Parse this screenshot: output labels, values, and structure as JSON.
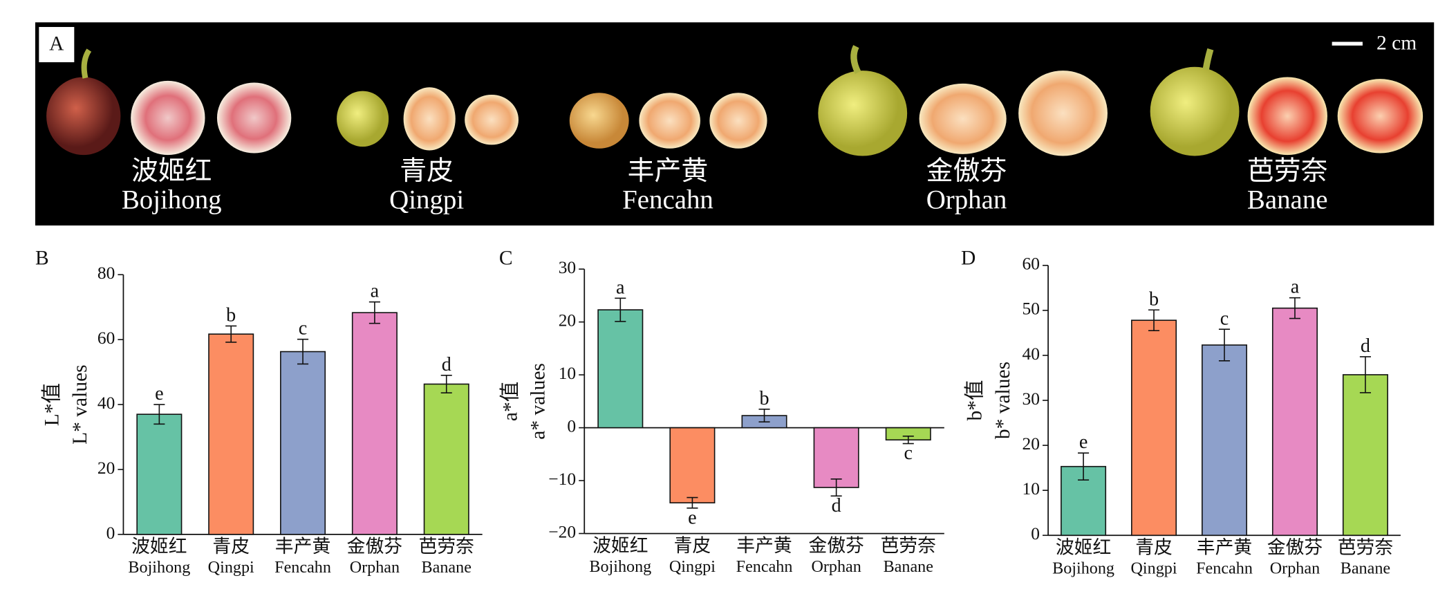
{
  "photo_panel": {
    "label": "A",
    "scale_bar": "2 cm",
    "varieties": [
      {
        "zh": "波姬红",
        "en": "Bojihong"
      },
      {
        "zh": "青皮",
        "en": "Qingpi"
      },
      {
        "zh": "丰产黄",
        "en": "Fencahn"
      },
      {
        "zh": "金傲芬",
        "en": "Orphan"
      },
      {
        "zh": "芭劳奈",
        "en": "Banane"
      }
    ]
  },
  "chart_data": [
    {
      "type": "bar",
      "panel_label": "B",
      "ylabel_zh": "L*值",
      "ylabel": "L* values",
      "categories": [
        "波姬红",
        "青皮",
        "丰产黄",
        "金傲芬",
        "芭劳奈"
      ],
      "category_subtitles": [
        "Bojihong",
        "Qingpi",
        "Fencahn",
        "Orphan",
        "Banane"
      ],
      "values": [
        37,
        61.7,
        56.3,
        68.3,
        46.3
      ],
      "errors": [
        3,
        2.5,
        3.8,
        3.3,
        2.7
      ],
      "significance": [
        "e",
        "b",
        "c",
        "a",
        "d"
      ],
      "colors": [
        "#66c2a5",
        "#fc8d62",
        "#8da0cb",
        "#e78ac3",
        "#a6d854"
      ],
      "ylim": [
        0,
        80
      ],
      "yticks": [
        0,
        20,
        40,
        60,
        80
      ]
    },
    {
      "type": "bar",
      "panel_label": "C",
      "ylabel_zh": "a*值",
      "ylabel": "a* values",
      "categories": [
        "波姬红",
        "青皮",
        "丰产黄",
        "金傲芬",
        "芭劳奈"
      ],
      "category_subtitles": [
        "Bojihong",
        "Qingpi",
        "Fencahn",
        "Orphan",
        "Banane"
      ],
      "values": [
        22.3,
        -14.2,
        2.3,
        -11.3,
        -2.3
      ],
      "errors": [
        2.2,
        1.0,
        1.2,
        1.6,
        0.7
      ],
      "significance": [
        "a",
        "e",
        "b",
        "d",
        "c"
      ],
      "colors": [
        "#66c2a5",
        "#fc8d62",
        "#8da0cb",
        "#e78ac3",
        "#a6d854"
      ],
      "ylim": [
        -20,
        30
      ],
      "yticks": [
        {
          "value": -20,
          "label": "−20"
        },
        {
          "value": -10,
          "label": "−10"
        },
        0,
        10,
        20,
        30
      ]
    },
    {
      "type": "bar",
      "panel_label": "D",
      "ylabel_zh": "b*值",
      "ylabel": "b* values",
      "categories": [
        "波姬红",
        "青皮",
        "丰产黄",
        "金傲芬",
        "芭劳奈"
      ],
      "category_subtitles": [
        "Bojihong",
        "Qingpi",
        "Fencahn",
        "Orphan",
        "Banane"
      ],
      "values": [
        15.3,
        47.8,
        42.3,
        50.5,
        35.7
      ],
      "errors": [
        3,
        2.3,
        3.5,
        2.3,
        4
      ],
      "significance": [
        "e",
        "b",
        "c",
        "a",
        "d"
      ],
      "colors": [
        "#66c2a5",
        "#fc8d62",
        "#8da0cb",
        "#e78ac3",
        "#a6d854"
      ],
      "ylim": [
        0,
        60
      ],
      "yticks": [
        0,
        10,
        20,
        30,
        40,
        50,
        60
      ]
    }
  ]
}
